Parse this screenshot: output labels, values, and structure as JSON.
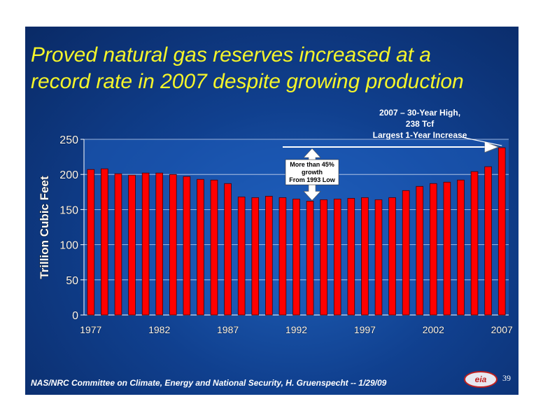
{
  "title_lines": [
    "Proved natural gas reserves increased at a",
    "record rate in 2007 despite growing production"
  ],
  "annotation_high": [
    "2007 – 30-Year High,",
    "238 Tcf",
    "Largest 1-Year Increase"
  ],
  "annotation_growth": [
    "More than 45%",
    "growth",
    "From 1993 Low"
  ],
  "footer": "NAS/NRC Committee on Climate, Energy and National Security, H. Gruenspecht -- 1/29/09",
  "page_number": "39",
  "logo_text": "eia",
  "colors": {
    "bar": "#ff0000",
    "title": "#f5f52a",
    "plot_bg": "#1f5fc0"
  },
  "chart_data": {
    "type": "bar",
    "title": "",
    "xlabel": "",
    "ylabel": "Trillion Cubic Feet",
    "ylim": [
      0,
      250
    ],
    "yticks": [
      0,
      50,
      100,
      150,
      200,
      250
    ],
    "xtick_labels": [
      "1977",
      "1982",
      "1987",
      "1992",
      "1997",
      "2002",
      "2007"
    ],
    "grid": "horizontal",
    "categories": [
      1977,
      1978,
      1979,
      1980,
      1981,
      1982,
      1983,
      1984,
      1985,
      1986,
      1987,
      1988,
      1989,
      1990,
      1991,
      1992,
      1993,
      1994,
      1995,
      1996,
      1997,
      1998,
      1999,
      2000,
      2001,
      2002,
      2003,
      2004,
      2005,
      2006,
      2007
    ],
    "values": [
      207,
      208,
      201,
      199,
      202,
      202,
      200,
      197,
      193,
      192,
      187,
      168,
      167,
      169,
      167,
      165,
      162,
      164,
      165,
      166,
      167,
      164,
      167,
      177,
      183,
      187,
      189,
      192,
      204,
      211,
      238
    ]
  }
}
